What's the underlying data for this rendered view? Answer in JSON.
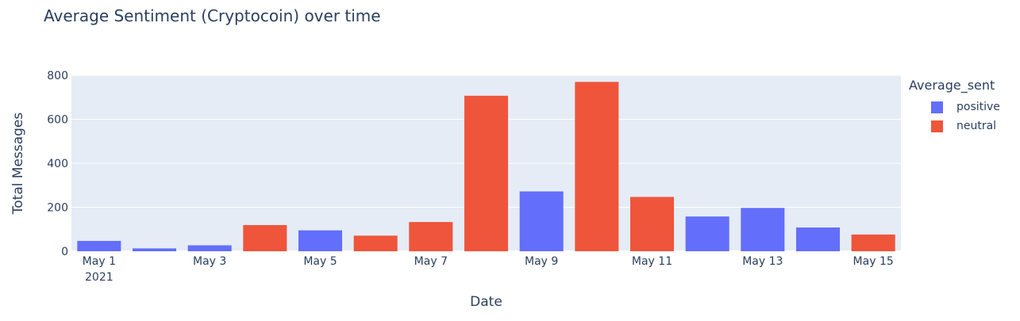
{
  "chart_data": {
    "type": "bar",
    "title": "Average Sentiment (Cryptocoin) over time",
    "xlabel": "Date",
    "ylabel": "Total Messages",
    "ylim": [
      0,
      800
    ],
    "y_ticks": [
      0,
      200,
      400,
      600,
      800
    ],
    "x_tick_labels": [
      "May 1",
      "May 3",
      "May 5",
      "May 7",
      "May 9",
      "May 11",
      "May 13",
      "May 15"
    ],
    "x_year_label": "2021",
    "categories": [
      "May 1",
      "May 2",
      "May 3",
      "May 4",
      "May 5",
      "May 6",
      "May 7",
      "May 8",
      "May 9",
      "May 10",
      "May 11",
      "May 12",
      "May 13",
      "May 14",
      "May 15"
    ],
    "legend_title": "Average_sent",
    "legend_position": "right",
    "grid": true,
    "series": [
      {
        "name": "positive",
        "color": "#636efa",
        "values": [
          47,
          13,
          27,
          null,
          95,
          null,
          null,
          null,
          272,
          null,
          null,
          158,
          197,
          108,
          null
        ]
      },
      {
        "name": "neutral",
        "color": "#ef553b",
        "values": [
          null,
          null,
          null,
          119,
          null,
          71,
          133,
          707,
          null,
          770,
          247,
          null,
          null,
          null,
          76
        ]
      }
    ]
  }
}
